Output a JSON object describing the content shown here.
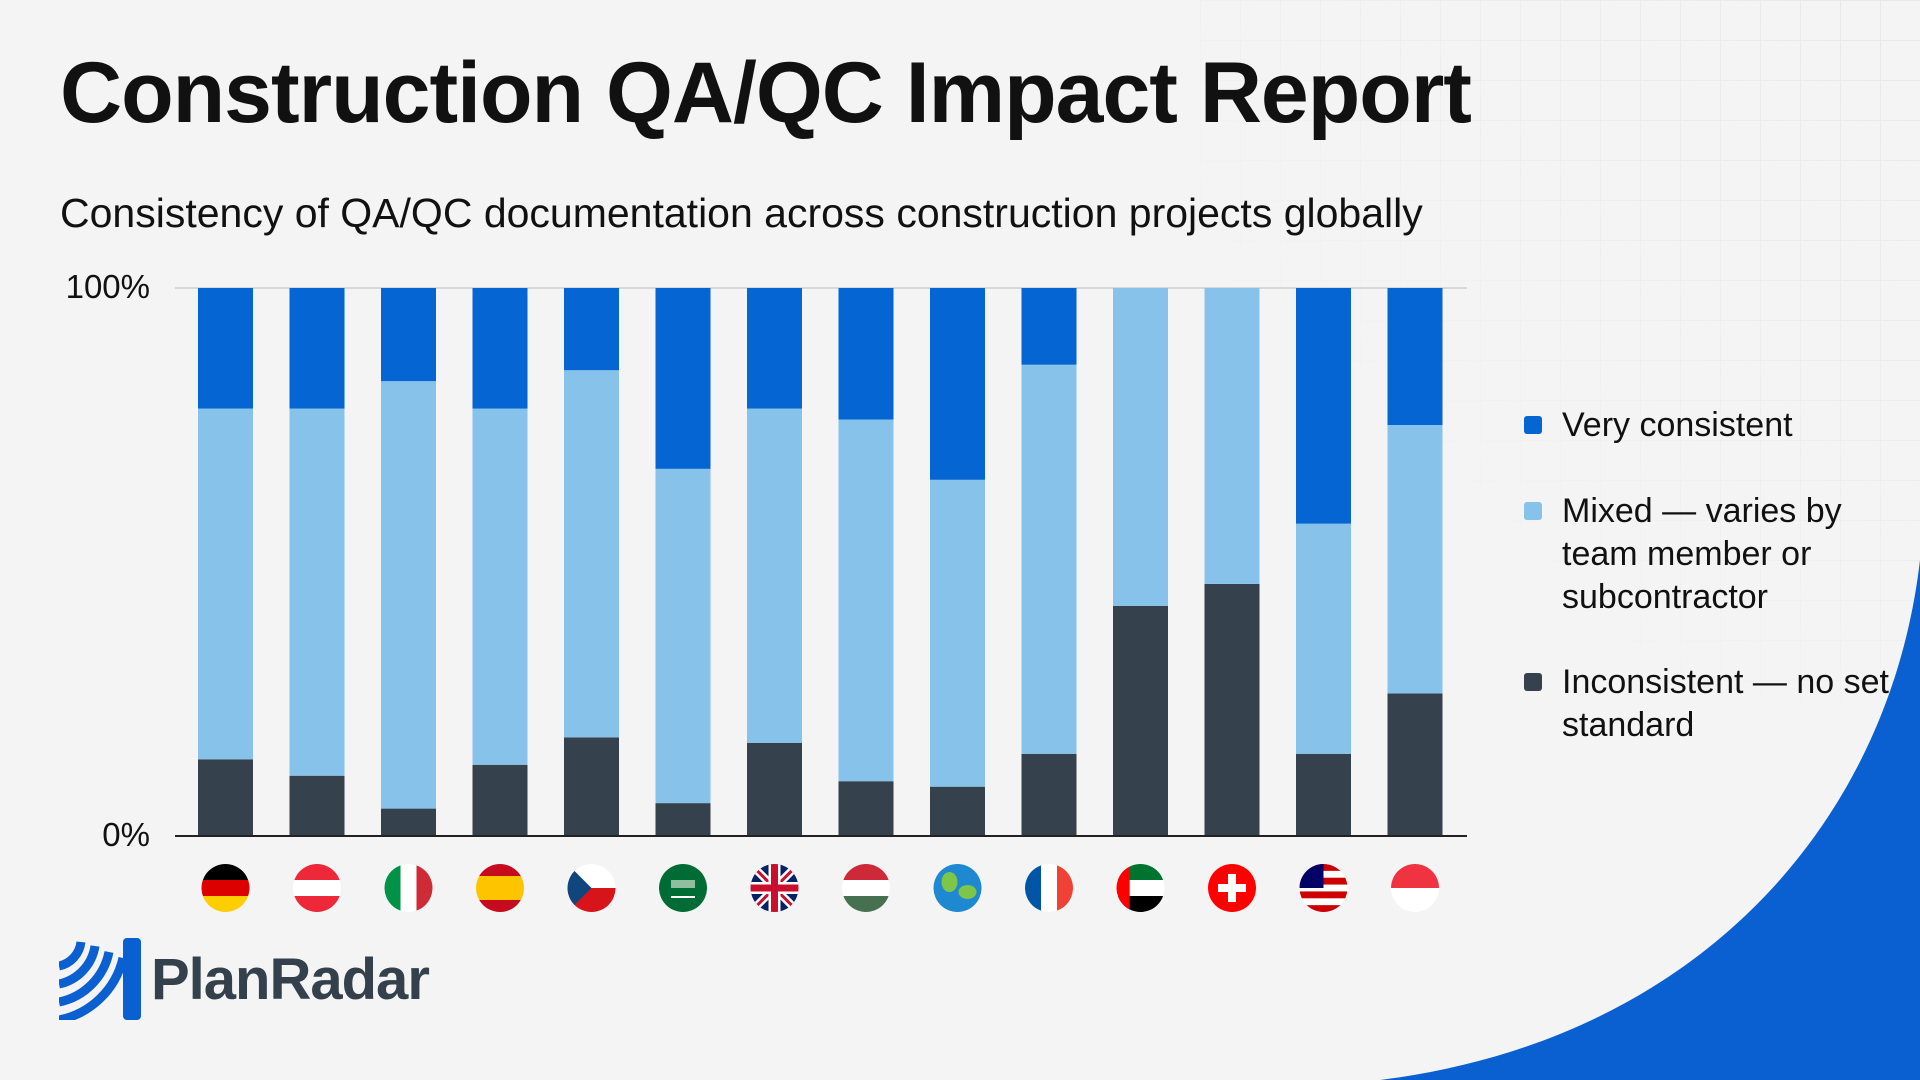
{
  "title": "Construction QA/QC Impact Report",
  "subtitle": "Consistency of QA/QC documentation across construction projects globally",
  "brand": {
    "name": "PlanRadar",
    "color": "#0a5fd1"
  },
  "chart_data": {
    "type": "bar",
    "stacked": true,
    "categories": [
      "Germany",
      "Austria",
      "Italy",
      "Spain",
      "Czech Republic",
      "Saudi Arabia",
      "United Kingdom",
      "Hungary",
      "Global",
      "France",
      "United Arab Emirates",
      "Switzerland",
      "Malaysia",
      "Singapore"
    ],
    "category_icons": [
      "flag-germany",
      "flag-austria",
      "flag-italy",
      "flag-spain",
      "flag-czech-republic",
      "flag-saudi-arabia",
      "flag-uk",
      "flag-hungary",
      "globe",
      "flag-france",
      "flag-uae",
      "flag-switzerland",
      "flag-malaysia",
      "flag-singapore"
    ],
    "series": [
      {
        "name": "Inconsistent — no set standard",
        "color": "#35414c",
        "values": [
          14,
          11,
          5,
          13,
          18,
          6,
          17,
          10,
          9,
          15,
          42,
          46,
          15,
          26
        ]
      },
      {
        "name": "Mixed — varies by team member or subcontractor",
        "color": "#87c2eb",
        "values": [
          64,
          67,
          78,
          65,
          67,
          61,
          61,
          66,
          56,
          71,
          58,
          54,
          42,
          49
        ]
      },
      {
        "name": "Very consistent",
        "color": "#0565d2",
        "values": [
          22,
          22,
          17,
          22,
          15,
          33,
          22,
          24,
          35,
          14,
          0,
          0,
          43,
          25
        ]
      }
    ],
    "ylim": [
      0,
      100
    ],
    "yticks": [
      "0%",
      "100%"
    ],
    "legend": "right",
    "grid": false
  }
}
